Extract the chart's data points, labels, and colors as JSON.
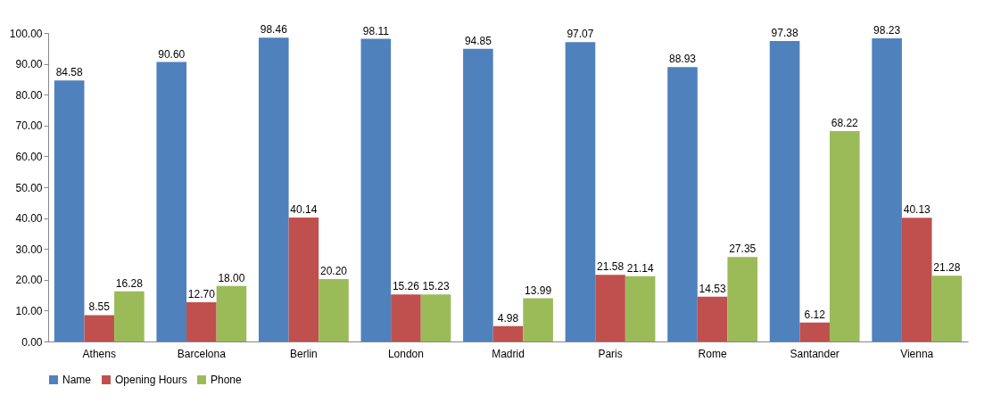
{
  "chart_data": {
    "type": "bar",
    "categories": [
      "Athens",
      "Barcelona",
      "Berlin",
      "London",
      "Madrid",
      "Paris",
      "Rome",
      "Santander",
      "Vienna"
    ],
    "series": [
      {
        "name": "Name",
        "color": "#4f81bd",
        "values": [
          84.58,
          90.6,
          98.46,
          98.11,
          94.85,
          97.07,
          88.93,
          97.38,
          98.23
        ],
        "value_labels": [
          "84.58",
          "90.60",
          "98.46",
          "98.11",
          "94.85",
          "97.07",
          "88.93",
          "97.38",
          "98.23"
        ]
      },
      {
        "name": "Opening Hours",
        "color": "#c0504d",
        "values": [
          8.55,
          12.7,
          40.14,
          15.26,
          4.98,
          21.58,
          14.53,
          6.12,
          40.13
        ],
        "value_labels": [
          "8.55",
          "12.70",
          "40.14",
          "15.26",
          "4.98",
          "21.58",
          "14.53",
          "6.12",
          "40.13"
        ]
      },
      {
        "name": "Phone",
        "color": "#9bbb59",
        "values": [
          16.28,
          18.0,
          20.2,
          15.23,
          13.99,
          21.14,
          27.35,
          68.22,
          21.28
        ],
        "value_labels": [
          "16.28",
          "18.00",
          "20.20",
          "15.23",
          "13.99",
          "21.14",
          "27.35",
          "68.22",
          "21.28"
        ]
      }
    ],
    "ylim": [
      0,
      100
    ],
    "yticks": [
      {
        "value": 0,
        "label": "0.00"
      },
      {
        "value": 10,
        "label": "10.00"
      },
      {
        "value": 20,
        "label": "20.00"
      },
      {
        "value": 30,
        "label": "30.00"
      },
      {
        "value": 40,
        "label": "40.00"
      },
      {
        "value": 50,
        "label": "50.00"
      },
      {
        "value": 60,
        "label": "60.00"
      },
      {
        "value": 70,
        "label": "70.00"
      },
      {
        "value": 80,
        "label": "80.00"
      },
      {
        "value": 90,
        "label": "90.00"
      },
      {
        "value": 100,
        "label": "100.00"
      }
    ],
    "grid": false,
    "legend": "bottom"
  }
}
